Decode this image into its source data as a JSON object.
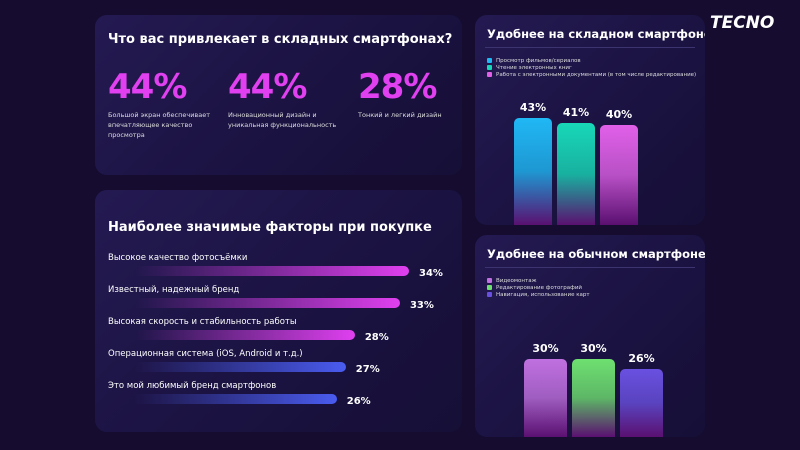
{
  "logo": "TECNO",
  "attract": {
    "title": "Что вас привлекает в складных смартфонах?",
    "items": [
      {
        "value": "44%",
        "caption": "Большой экран обеспечивает впечатляющее качество просмотра"
      },
      {
        "value": "44%",
        "caption": "Инновационный дизайн и уникальная функциональность"
      },
      {
        "value": "28%",
        "caption": "Тонкий и легкий дизайн"
      }
    ]
  },
  "chart_data": [
    {
      "type": "bar",
      "orientation": "horizontal",
      "title": "Наиболее значимые факторы при покупке",
      "categories": [
        "Высокое качество фотосъёмки",
        "Известный, надежный бренд",
        "Высокая скорость и стабильность работы",
        "Операционная система (iOS, Android и т.д.)",
        "Это мой любимый бренд смартфонов"
      ],
      "values": [
        34,
        33,
        28,
        27,
        26
      ],
      "labels": [
        "34%",
        "33%",
        "28%",
        "27%",
        "26%"
      ],
      "colors": [
        "#e040f0",
        "#e040f0",
        "#e040f0",
        "#4a5cf0",
        "#4a5cf0"
      ]
    },
    {
      "type": "bar",
      "title": "Удобнее на складном смартфоне",
      "series": [
        {
          "name": "Просмотр фильмов/сериалов",
          "value": 43,
          "label": "43%",
          "color": "#1fb8f5"
        },
        {
          "name": "Чтение электронных книг",
          "value": 41,
          "label": "41%",
          "color": "#18d8b8"
        },
        {
          "name": "Работа с электронными документами (в том числе редактирование)",
          "value": 40,
          "label": "40%",
          "color": "#e060e8"
        }
      ],
      "legend": "top-left"
    },
    {
      "type": "bar",
      "title": "Удобнее на обычном смартфоне",
      "series": [
        {
          "name": "Видеомонтаж",
          "value": 30,
          "label": "30%",
          "color": "#c070e0"
        },
        {
          "name": "Редактирование фотографий",
          "value": 30,
          "label": "30%",
          "color": "#6ee070"
        },
        {
          "name": "Навигация, использование карт",
          "value": 26,
          "label": "26%",
          "color": "#6a50e0"
        }
      ],
      "legend": "top-left"
    }
  ]
}
